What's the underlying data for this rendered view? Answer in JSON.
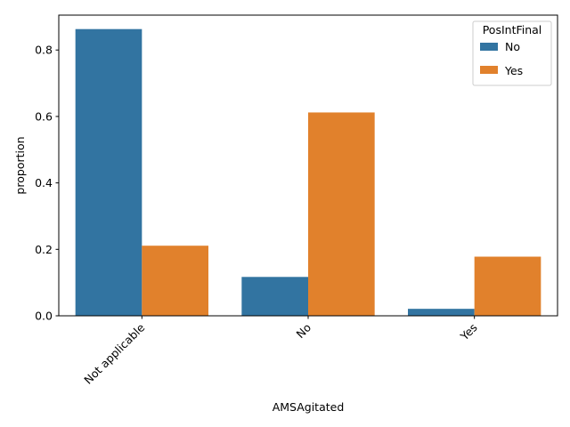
{
  "chart_data": {
    "type": "bar",
    "xlabel": "AMSAgitated",
    "ylabel": "proportion",
    "categories": [
      "Not applicable",
      "No",
      "Yes"
    ],
    "yticks": [
      "0.0",
      "0.2",
      "0.4",
      "0.6",
      "0.8"
    ],
    "ylim": [
      0,
      0.905
    ],
    "grid": false,
    "legend": {
      "title": "PosIntFinal",
      "placement": "top-right"
    },
    "series": [
      {
        "name": "No",
        "color": "#3274a1",
        "values": [
          0.863,
          0.117,
          0.021
        ]
      },
      {
        "name": "Yes",
        "color": "#e1812c",
        "values": [
          0.211,
          0.612,
          0.178
        ]
      }
    ]
  }
}
